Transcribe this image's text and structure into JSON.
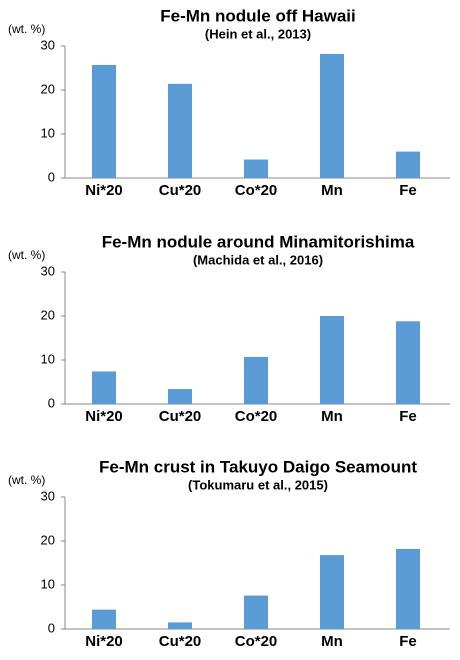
{
  "chart_data": [
    {
      "type": "bar",
      "title": "Fe-Mn nodule off Hawaii",
      "subtitle": "(Hein et al., 2013)",
      "ylabel": "(wt. %)",
      "categories": [
        "Ni*20",
        "Cu*20",
        "Co*20",
        "Mn",
        "Fe"
      ],
      "values": [
        25.7,
        21.4,
        4.2,
        28.2,
        6.0
      ],
      "color": "#5b9bd5",
      "ylim": [
        0,
        30
      ],
      "yticks": [
        0,
        10,
        20,
        30
      ]
    },
    {
      "type": "bar",
      "title": "Fe-Mn nodule around Minamitorishima",
      "subtitle": "(Machida et al., 2016)",
      "ylabel": "(wt. %)",
      "categories": [
        "Ni*20",
        "Cu*20",
        "Co*20",
        "Mn",
        "Fe"
      ],
      "values": [
        7.4,
        3.4,
        10.7,
        20.0,
        18.8
      ],
      "color": "#5b9bd5",
      "ylim": [
        0,
        30
      ],
      "yticks": [
        0,
        10,
        20,
        30
      ]
    },
    {
      "type": "bar",
      "title": "Fe-Mn crust in Takuyo Daigo Seamount",
      "subtitle": "(Tokumaru et al., 2015)",
      "ylabel": "(wt. %)",
      "categories": [
        "Ni*20",
        "Cu*20",
        "Co*20",
        "Mn",
        "Fe"
      ],
      "values": [
        4.4,
        1.5,
        7.6,
        16.8,
        18.2
      ],
      "color": "#5b9bd5",
      "ylim": [
        0,
        30
      ],
      "yticks": [
        0,
        10,
        20,
        30
      ]
    }
  ]
}
